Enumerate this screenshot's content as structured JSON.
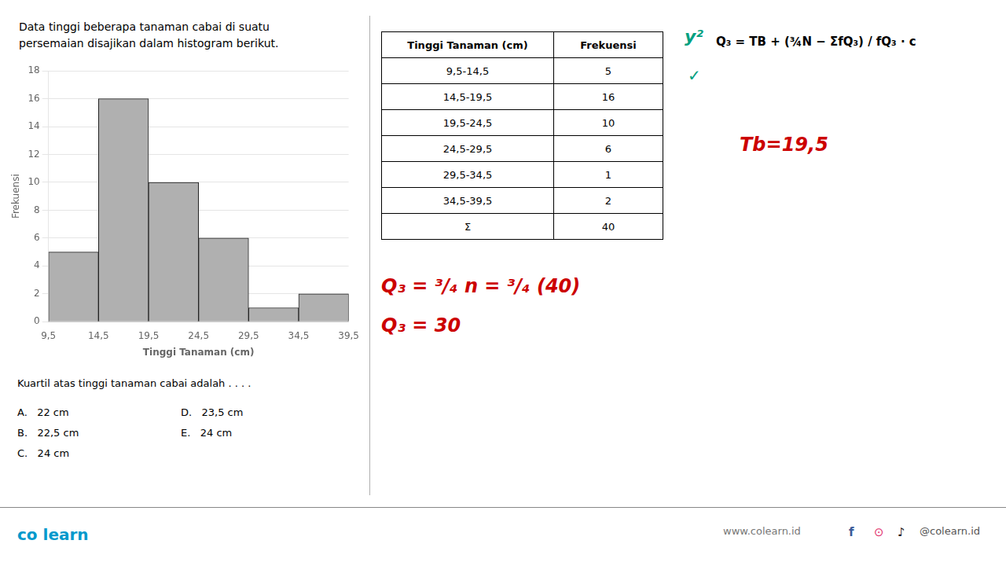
{
  "chart_data": {
    "type": "histogram",
    "title": "Data tinggi beberapa tanaman cabai di suatu\npersemaian disajikan dalam histogram berikut.",
    "bins": [
      9.5,
      14.5,
      19.5,
      24.5,
      29.5,
      34.5,
      39.5
    ],
    "values": [
      5,
      16,
      10,
      6,
      1,
      2
    ],
    "color": "#b0b0b0",
    "xlabel": "Tinggi Tanaman (cm)",
    "ylabel": "Frekuensi",
    "xlim": [
      9.5,
      39.5
    ],
    "xticks": [
      {
        "value": 9.5,
        "label": "9,5"
      },
      {
        "value": 14.5,
        "label": "14,5"
      },
      {
        "value": 19.5,
        "label": "19,5"
      },
      {
        "value": 24.5,
        "label": "24,5"
      },
      {
        "value": 29.5,
        "label": "29,5"
      },
      {
        "value": 34.5,
        "label": "34,5"
      },
      {
        "value": 39.5,
        "label": "39,5"
      }
    ],
    "ylim": [
      0,
      18
    ],
    "yticks": [
      0,
      2,
      4,
      6,
      8,
      10,
      12,
      14,
      16,
      18
    ],
    "grid": "y",
    "question": "Kuartil atas tinggi tanaman cabai adalah . . . .",
    "options": [
      [
        "A.   22 cm",
        "B.   22,5 cm",
        "C.   24 cm"
      ],
      [
        "D.   23,5 cm",
        "E.   24 cm"
      ]
    ],
    "table": {
      "headers": [
        "Tinggi Tanaman (cm)",
        "Frekuensi"
      ],
      "rows": [
        [
          "9,5-14,5",
          "5"
        ],
        [
          "14,5-19,5",
          "16"
        ],
        [
          "19,5-24,5",
          "10"
        ],
        [
          "24,5-29,5",
          "6"
        ],
        [
          "29,5-34,5",
          "1"
        ],
        [
          "34,5-39,5",
          "2"
        ],
        [
          "Σ",
          "40"
        ]
      ]
    },
    "annotations": [
      {
        "text": "y²",
        "color": "#00a080"
      },
      {
        "text": "✓",
        "color": "#00a080"
      },
      {
        "text": "Q₃ = TB + (¾N − ΣfQ₃) / fQ₃ · c"
      },
      {
        "text": "Tb=19,5",
        "color": "#cc0000"
      },
      {
        "text": "Q₃ = ³/₄ n = ³/₄ (40)",
        "color": "#cc0000"
      },
      {
        "text": "Q₃ = 30",
        "color": "#cc0000"
      }
    ],
    "footer": [
      {
        "text": "co learn",
        "color": "#0099cc"
      },
      {
        "text": "www.colearn.id",
        "color": "#777777"
      },
      {
        "text": "f",
        "color": "#3b5998"
      },
      {
        "text": "⊙",
        "color": "#E1306C"
      },
      {
        "text": "♪",
        "color": "#000000"
      },
      {
        "text": "@colearn.id",
        "color": "#555555"
      }
    ]
  }
}
